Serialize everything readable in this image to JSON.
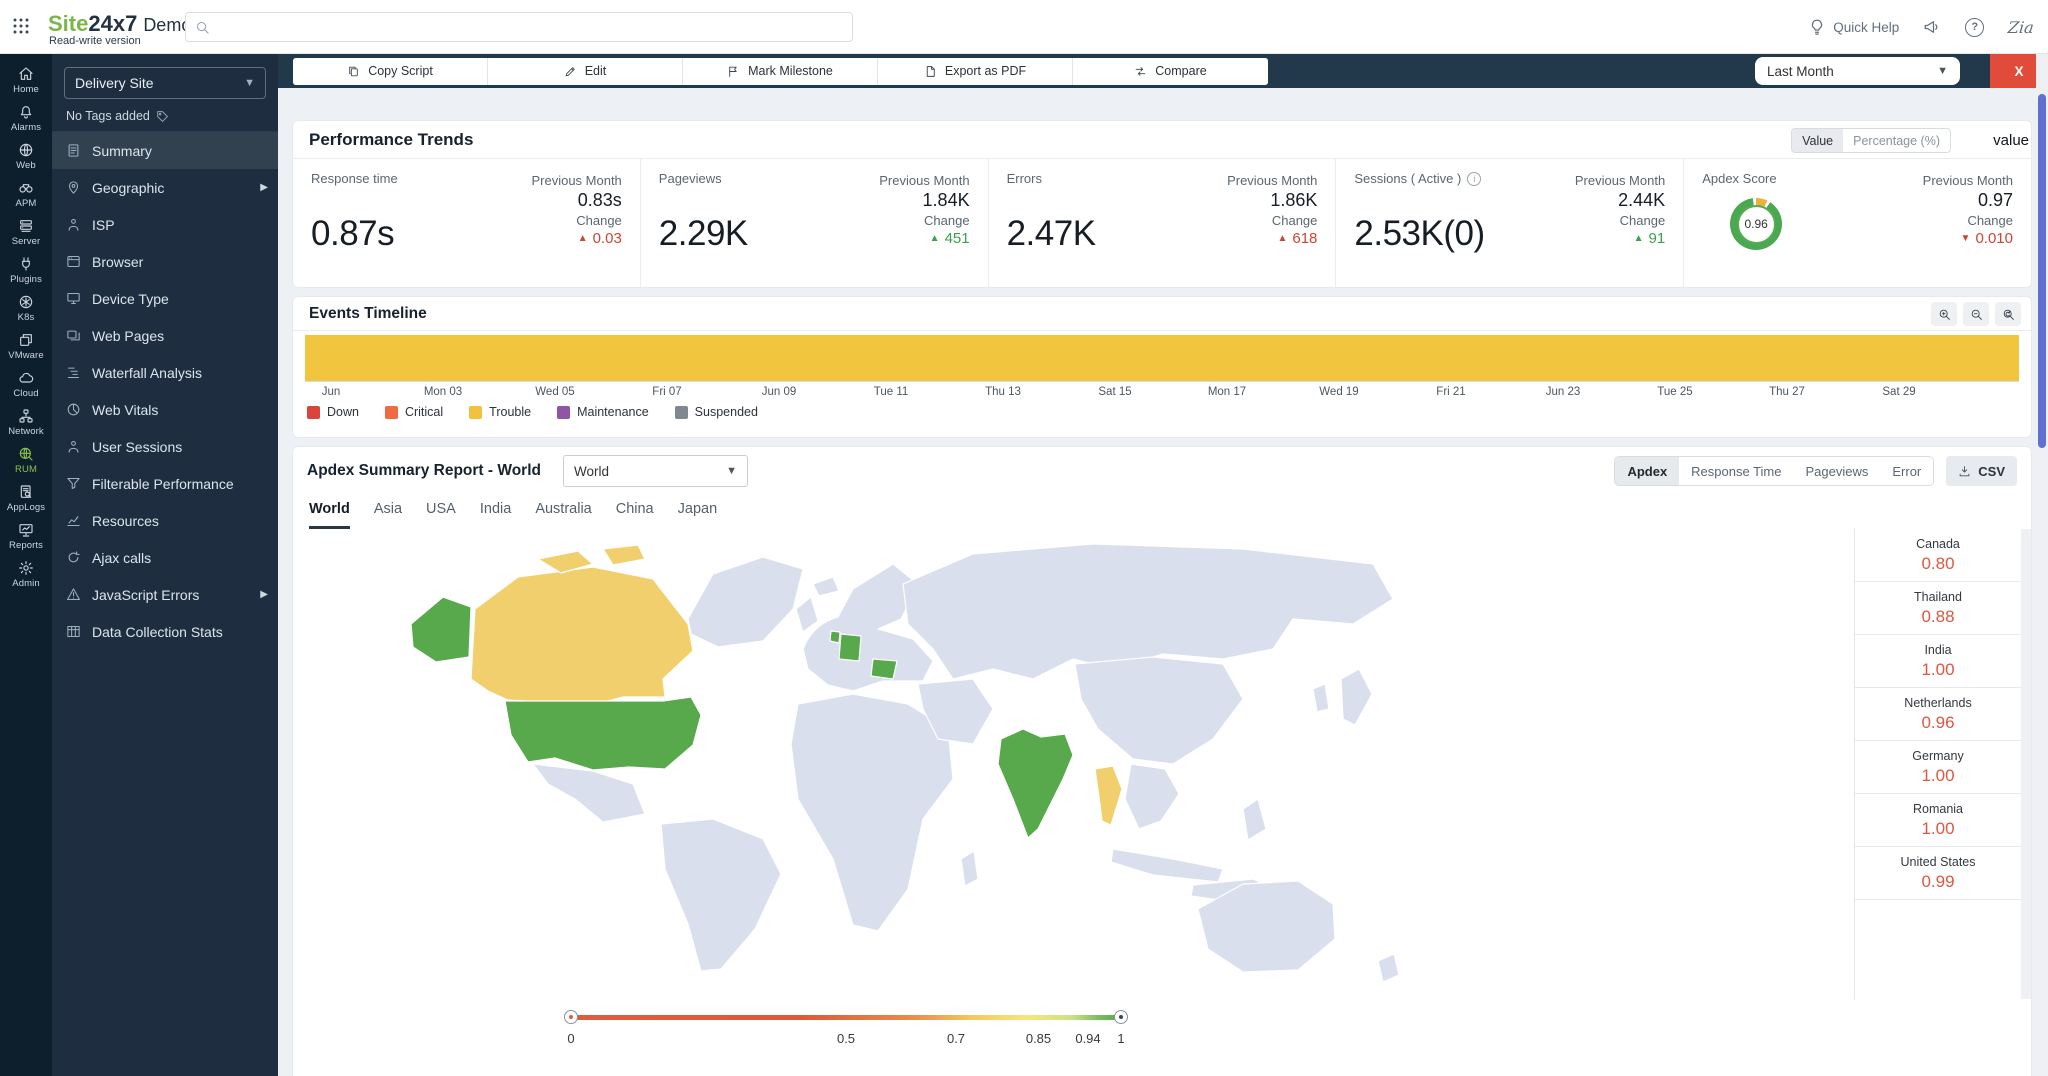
{
  "topbar": {
    "logo_site": "Site",
    "logo_247": "24x7",
    "logo_demo": "Demo",
    "version": "Read-write version",
    "search_placeholder": "",
    "quick_help": "Quick Help",
    "zia": "Zia"
  },
  "rail": {
    "active": "RUM",
    "items": [
      {
        "label": "Home"
      },
      {
        "label": "Alarms"
      },
      {
        "label": "Web"
      },
      {
        "label": "APM"
      },
      {
        "label": "Server"
      },
      {
        "label": "Plugins"
      },
      {
        "label": "K8s"
      },
      {
        "label": "VMware"
      },
      {
        "label": "Cloud"
      },
      {
        "label": "Network"
      },
      {
        "label": "RUM"
      },
      {
        "label": "AppLogs"
      },
      {
        "label": "Reports"
      },
      {
        "label": "Admin"
      }
    ]
  },
  "sidebar": {
    "monitor": "Delivery Site",
    "tags": "No Tags added",
    "active": "Summary",
    "items": [
      {
        "label": "Summary"
      },
      {
        "label": "Geographic"
      },
      {
        "label": "ISP"
      },
      {
        "label": "Browser"
      },
      {
        "label": "Device Type"
      },
      {
        "label": "Web Pages"
      },
      {
        "label": "Waterfall Analysis"
      },
      {
        "label": "Web Vitals"
      },
      {
        "label": "User Sessions"
      },
      {
        "label": "Filterable Performance"
      },
      {
        "label": "Resources"
      },
      {
        "label": "Ajax calls"
      },
      {
        "label": "JavaScript Errors"
      },
      {
        "label": "Data Collection Stats"
      }
    ]
  },
  "toolbar": {
    "buttons": [
      {
        "label": "Copy Script"
      },
      {
        "label": "Edit"
      },
      {
        "label": "Mark Milestone"
      },
      {
        "label": "Export as PDF"
      },
      {
        "label": "Compare"
      }
    ],
    "period": "Last Month",
    "close": "X"
  },
  "performance": {
    "title": "Performance Trends",
    "toggle_value": "Value",
    "toggle_pct": "Percentage (%)",
    "overflow_text": "value",
    "prev_label": "Previous Month",
    "change_label": "Change",
    "metrics": [
      {
        "label": "Response time",
        "value": "0.87s",
        "prev": "0.83s",
        "change": "0.03",
        "arrow": "▲",
        "trend": "bad"
      },
      {
        "label": "Pageviews",
        "value": "2.29K",
        "prev": "1.84K",
        "change": "451",
        "arrow": "▲",
        "trend": "good"
      },
      {
        "label": "Errors",
        "value": "2.47K",
        "prev": "1.86K",
        "change": "618",
        "arrow": "▲",
        "trend": "bad"
      },
      {
        "label": "Sessions ( Active )",
        "value": "2.53K(0)",
        "prev": "2.44K",
        "change": "91",
        "arrow": "▲",
        "trend": "good"
      },
      {
        "label": "Apdex Score",
        "value": "0.96",
        "prev": "0.97",
        "change": "0.010",
        "arrow": "▼",
        "trend": "bad"
      }
    ]
  },
  "events": {
    "title": "Events Timeline",
    "bar_color": "#f2c53f",
    "axis": [
      "Jun",
      "Mon 03",
      "Wed 05",
      "Fri 07",
      "Jun 09",
      "Tue 11",
      "Thu 13",
      "Sat 15",
      "Mon 17",
      "Wed 19",
      "Fri 21",
      "Jun 23",
      "Tue 25",
      "Thu 27",
      "Sat 29"
    ],
    "legend": [
      {
        "label": "Down",
        "color": "#d9453a"
      },
      {
        "label": "Critical",
        "color": "#ef6b46"
      },
      {
        "label": "Trouble",
        "color": "#f2c13d"
      },
      {
        "label": "Maintenance",
        "color": "#8e56a5"
      },
      {
        "label": "Suspended",
        "color": "#7f8790"
      }
    ]
  },
  "apdex": {
    "title": "Apdex Summary Report - World",
    "region_dropdown": "World",
    "tabs": [
      "World",
      "Asia",
      "USA",
      "India",
      "Australia",
      "China",
      "Japan"
    ],
    "active_tab": "World",
    "metric_tabs": [
      "Apdex",
      "Response Time",
      "Pageviews",
      "Error"
    ],
    "active_metric": "Apdex",
    "csv": "CSV",
    "countries": [
      {
        "name": "Canada",
        "value": "0.80"
      },
      {
        "name": "Thailand",
        "value": "0.88"
      },
      {
        "name": "India",
        "value": "1.00"
      },
      {
        "name": "Netherlands",
        "value": "0.96"
      },
      {
        "name": "Germany",
        "value": "1.00"
      },
      {
        "name": "Romania",
        "value": "1.00"
      },
      {
        "name": "United States",
        "value": "0.99"
      }
    ],
    "scale_ticks": [
      "0",
      "0.5",
      "0.7",
      "0.85",
      "0.94",
      "1"
    ],
    "colors": {
      "good": "#58a84c",
      "warn": "#f1cf6d",
      "base": "#d9dfec",
      "value_text": "#dd5742"
    }
  },
  "chart_data": {
    "type": "heatmap",
    "title": "Apdex Summary Report - World",
    "series": [
      {
        "name": "Apdex",
        "points": [
          {
            "label": "Canada",
            "value": 0.8
          },
          {
            "label": "Thailand",
            "value": 0.88
          },
          {
            "label": "India",
            "value": 1.0
          },
          {
            "label": "Netherlands",
            "value": 0.96
          },
          {
            "label": "Germany",
            "value": 1.0
          },
          {
            "label": "Romania",
            "value": 1.0
          },
          {
            "label": "United States",
            "value": 0.99
          }
        ]
      }
    ],
    "scale": [
      0,
      0.5,
      0.7,
      0.85,
      0.94,
      1
    ],
    "legend_position": "bottom"
  }
}
